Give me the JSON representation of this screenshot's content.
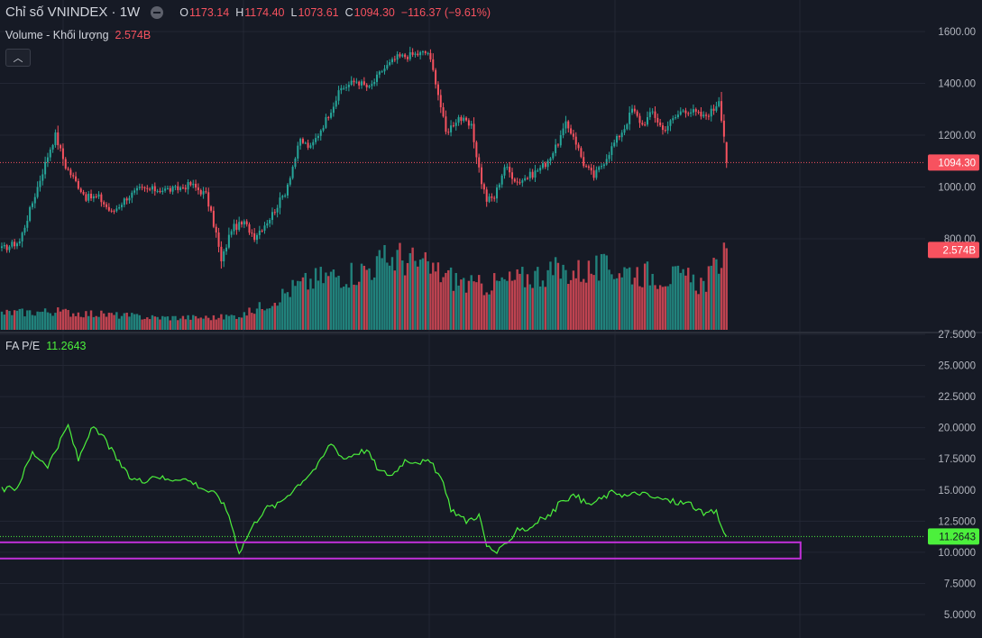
{
  "header": {
    "symbol_title": "Chỉ số VNINDEX · 1W",
    "o_key": "O",
    "o_val": "1173.14",
    "h_key": "H",
    "h_val": "1174.40",
    "l_key": "L",
    "l_val": "1073.61",
    "c_key": "C",
    "c_val": "1094.30",
    "change": "−116.37 (−9.61%)"
  },
  "volume_legend": {
    "label": "Volume - Khối lượng",
    "value": "2.574B"
  },
  "pe_legend": {
    "label": "FA P/E",
    "value": "11.2643"
  },
  "colors": {
    "background": "#161a25",
    "grid": "#232734",
    "up": "#26a69a",
    "down": "#f7525f",
    "pe_line": "#4cf03c",
    "price_label_bg": "#f7525f",
    "pe_label_bg": "#4cf03c",
    "highlight_box": "#c030d8",
    "axis_text": "#b2b5be"
  },
  "chart_data": [
    {
      "type": "candlestick",
      "title": "Chỉ số VNINDEX · 1W",
      "ylim": [
        700,
        1650
      ],
      "y_ticks": [
        "800.00",
        "1000.00",
        "1200.00",
        "1400.00",
        "1600.00"
      ],
      "last_price_label": "1094.30",
      "last_price": 1094.3,
      "anchors": [
        [
          0,
          760
        ],
        [
          7,
          790
        ],
        [
          14,
          1000
        ],
        [
          19,
          1150
        ],
        [
          21,
          1200
        ],
        [
          25,
          1080
        ],
        [
          29,
          1020
        ],
        [
          33,
          960
        ],
        [
          38,
          960
        ],
        [
          43,
          900
        ],
        [
          49,
          960
        ],
        [
          54,
          990
        ],
        [
          61,
          990
        ],
        [
          68,
          990
        ],
        [
          74,
          1010
        ],
        [
          80,
          970
        ],
        [
          84,
          820
        ],
        [
          86,
          710
        ],
        [
          90,
          840
        ],
        [
          95,
          860
        ],
        [
          99,
          810
        ],
        [
          105,
          880
        ],
        [
          111,
          980
        ],
        [
          117,
          1180
        ],
        [
          121,
          1150
        ],
        [
          127,
          1260
        ],
        [
          133,
          1380
        ],
        [
          139,
          1410
        ],
        [
          144,
          1380
        ],
        [
          149,
          1450
        ],
        [
          155,
          1500
        ],
        [
          161,
          1510
        ],
        [
          167,
          1520
        ],
        [
          170,
          1410
        ],
        [
          174,
          1210
        ],
        [
          179,
          1270
        ],
        [
          184,
          1230
        ],
        [
          188,
          1020
        ],
        [
          190,
          950
        ],
        [
          193,
          960
        ],
        [
          197,
          1080
        ],
        [
          202,
          1020
        ],
        [
          208,
          1050
        ],
        [
          213,
          1090
        ],
        [
          217,
          1150
        ],
        [
          221,
          1240
        ],
        [
          224,
          1200
        ],
        [
          228,
          1090
        ],
        [
          232,
          1040
        ],
        [
          236,
          1100
        ],
        [
          240,
          1170
        ],
        [
          244,
          1230
        ],
        [
          247,
          1300
        ],
        [
          251,
          1240
        ],
        [
          255,
          1290
        ],
        [
          259,
          1220
        ],
        [
          263,
          1260
        ],
        [
          267,
          1300
        ],
        [
          271,
          1290
        ],
        [
          275,
          1270
        ],
        [
          279,
          1300
        ],
        [
          281,
          1340
        ],
        [
          284,
          1130
        ]
      ],
      "last_candle": {
        "open": 1173.14,
        "high": 1174.4,
        "low": 1073.61,
        "close": 1094.3
      }
    },
    {
      "type": "bar",
      "title": "Volume - Khối lượng",
      "units": "B",
      "last_value_label": "2.574B",
      "last_value": 2.574,
      "max_value": 2.7,
      "anchors": [
        [
          0,
          0.55
        ],
        [
          20,
          0.6
        ],
        [
          40,
          0.5
        ],
        [
          60,
          0.4
        ],
        [
          85,
          0.4
        ],
        [
          95,
          0.5
        ],
        [
          105,
          0.9
        ],
        [
          115,
          1.4
        ],
        [
          125,
          1.7
        ],
        [
          140,
          1.9
        ],
        [
          155,
          2.4
        ],
        [
          170,
          1.9
        ],
        [
          185,
          1.4
        ],
        [
          200,
          1.6
        ],
        [
          215,
          1.9
        ],
        [
          225,
          1.9
        ],
        [
          240,
          2.0
        ],
        [
          255,
          1.8
        ],
        [
          265,
          1.7
        ],
        [
          275,
          1.5
        ],
        [
          280,
          2.0
        ],
        [
          282,
          2.5
        ],
        [
          284,
          2.57
        ]
      ]
    },
    {
      "type": "line",
      "title": "FA P/E",
      "ylim": [
        5,
        27.5
      ],
      "y_ticks": [
        "5.0000",
        "7.5000",
        "10.0000",
        "12.5000",
        "15.0000",
        "17.5000",
        "20.0000",
        "22.5000",
        "25.0000",
        "27.5000"
      ],
      "last_value_label": "11.2643",
      "last_value": 11.2643,
      "highlight_band": {
        "x_start": 0,
        "x_end": 313,
        "y_low": 9.5,
        "y_high": 10.8
      },
      "anchors": [
        [
          0,
          15.0
        ],
        [
          6,
          15.2
        ],
        [
          12,
          18.0
        ],
        [
          18,
          17.0
        ],
        [
          22,
          18.5
        ],
        [
          26,
          20.2
        ],
        [
          30,
          17.4
        ],
        [
          35,
          20.0
        ],
        [
          40,
          19.2
        ],
        [
          45,
          17.5
        ],
        [
          50,
          16.0
        ],
        [
          55,
          15.7
        ],
        [
          60,
          16.2
        ],
        [
          65,
          15.8
        ],
        [
          70,
          16.0
        ],
        [
          75,
          15.6
        ],
        [
          80,
          15.0
        ],
        [
          85,
          14.5
        ],
        [
          89,
          13.0
        ],
        [
          93,
          10.0
        ],
        [
          98,
          12.0
        ],
        [
          103,
          13.5
        ],
        [
          108,
          13.8
        ],
        [
          113,
          14.8
        ],
        [
          119,
          16.0
        ],
        [
          124,
          17.0
        ],
        [
          129,
          18.8
        ],
        [
          134,
          17.5
        ],
        [
          139,
          18.0
        ],
        [
          143,
          18.2
        ],
        [
          148,
          16.5
        ],
        [
          153,
          16.2
        ],
        [
          158,
          17.4
        ],
        [
          163,
          17.3
        ],
        [
          168,
          17.2
        ],
        [
          172,
          16.0
        ],
        [
          176,
          13.5
        ],
        [
          182,
          12.5
        ],
        [
          187,
          13.0
        ],
        [
          190,
          10.5
        ],
        [
          194,
          10.0
        ],
        [
          198,
          10.6
        ],
        [
          202,
          12.0
        ],
        [
          206,
          11.8
        ],
        [
          210,
          12.5
        ],
        [
          215,
          13.0
        ],
        [
          220,
          14.3
        ],
        [
          225,
          14.5
        ],
        [
          230,
          13.8
        ],
        [
          235,
          14.3
        ],
        [
          240,
          14.9
        ],
        [
          245,
          14.5
        ],
        [
          250,
          14.8
        ],
        [
          255,
          14.4
        ],
        [
          260,
          14.2
        ],
        [
          265,
          14.0
        ],
        [
          270,
          13.9
        ],
        [
          275,
          13.0
        ],
        [
          280,
          13.3
        ],
        [
          282,
          12.0
        ],
        [
          284,
          11.26
        ]
      ]
    }
  ]
}
